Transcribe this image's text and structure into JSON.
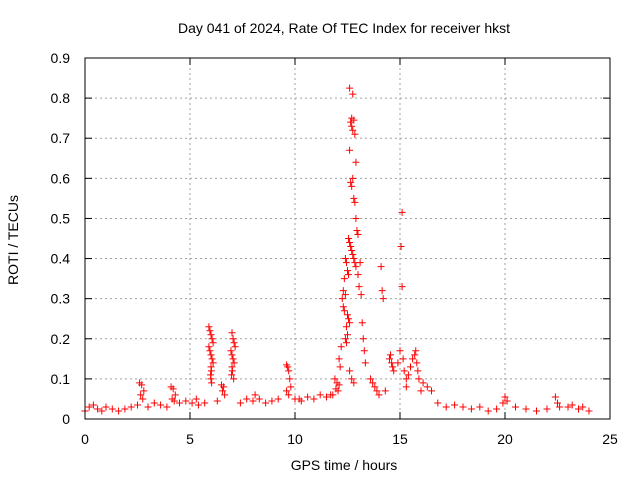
{
  "chart_data": {
    "type": "scatter",
    "title": "Day 041 of 2024, Rate Of TEC Index for receiver hkst",
    "xlabel": "GPS time / hours",
    "ylabel": "ROTI / TECUs",
    "xlim": [
      0,
      25
    ],
    "ylim": [
      0,
      0.9
    ],
    "xticks": [
      "0",
      "5",
      "10",
      "15",
      "20",
      "25"
    ],
    "yticks": [
      "0",
      "0.1",
      "0.2",
      "0.3",
      "0.4",
      "0.5",
      "0.6",
      "0.7",
      "0.8",
      "0.9"
    ],
    "grid": true,
    "marker": "+",
    "color": "#ff0000",
    "series": [
      {
        "x": [
          12.6,
          12.75,
          12.7,
          12.65,
          12.8,
          12.7,
          12.75,
          12.85,
          12.9,
          12.6,
          12.65,
          12.7,
          12.75,
          12.8,
          12.85,
          12.9,
          12.95,
          13.0,
          12.55,
          12.6,
          12.65,
          12.7,
          12.75,
          12.8,
          12.85,
          12.9,
          12.4,
          12.45,
          12.5,
          12.55,
          12.35,
          12.3,
          12.4,
          12.25,
          12.3,
          12.35,
          12.5,
          12.55,
          12.6,
          12.45,
          12.5,
          12.4,
          12.45,
          12.2,
          12.1,
          12.15,
          12.6,
          12.7,
          12.8,
          13.0,
          13.1,
          13.05,
          13.15,
          13.2,
          13.25,
          13.3,
          13.35,
          14.1,
          14.15,
          14.2,
          14.5,
          14.55,
          14.6,
          14.65,
          14.7,
          14.9,
          15.0,
          15.05,
          15.1,
          15.1,
          15.15,
          15.2,
          15.3,
          15.4,
          15.5,
          15.6,
          15.7,
          15.75,
          15.8,
          15.85,
          15.9,
          16.1,
          16.3,
          16.5,
          5.9,
          5.95,
          6.0,
          6.05,
          6.1,
          5.9,
          5.95,
          6.0,
          6.05,
          6.1,
          6.0,
          6.02,
          5.98,
          6.0,
          6.03,
          7.0,
          7.05,
          7.1,
          7.15,
          6.95,
          7.0,
          7.05,
          7.1,
          7.0,
          7.02,
          6.98,
          7.08,
          9.6,
          9.65,
          9.7,
          9.75,
          9.8,
          9.6,
          9.7,
          2.6,
          2.7,
          2.8,
          2.65,
          2.75,
          4.1,
          4.2,
          4.3,
          4.15,
          4.25,
          6.5,
          6.6,
          6.55,
          6.65,
          11.9,
          12.0,
          12.1,
          11.95,
          12.05,
          13.6,
          13.7,
          13.8,
          13.9,
          14.0,
          16.8,
          17.2,
          17.6,
          18.0,
          18.4,
          18.8,
          19.2,
          19.6,
          19.9,
          20.0,
          20.1,
          20.5,
          21.0,
          21.5,
          22.0,
          22.4,
          22.5,
          22.6,
          23.0,
          23.2,
          23.5,
          23.7,
          24.0,
          0.0,
          0.2,
          0.4,
          0.6,
          0.8,
          1.0,
          1.3,
          1.6,
          1.9,
          2.2,
          2.5,
          3.0,
          3.3,
          3.6,
          3.9,
          4.5,
          4.8,
          5.1,
          5.4,
          5.7,
          6.3,
          7.4,
          7.7,
          8.0,
          8.3,
          8.6,
          8.9,
          9.2,
          10.0,
          10.3,
          10.6,
          10.9,
          11.2,
          11.5,
          11.7,
          5.3,
          8.1,
          10.2,
          11.8,
          14.3,
          15.3,
          16.0
        ],
        "y": [
          0.825,
          0.81,
          0.75,
          0.74,
          0.745,
          0.73,
          0.72,
          0.71,
          0.64,
          0.67,
          0.59,
          0.58,
          0.6,
          0.55,
          0.54,
          0.5,
          0.47,
          0.46,
          0.45,
          0.44,
          0.43,
          0.42,
          0.41,
          0.4,
          0.39,
          0.38,
          0.4,
          0.39,
          0.37,
          0.36,
          0.35,
          0.32,
          0.31,
          0.3,
          0.28,
          0.27,
          0.26,
          0.25,
          0.24,
          0.23,
          0.21,
          0.2,
          0.19,
          0.18,
          0.15,
          0.13,
          0.12,
          0.1,
          0.09,
          0.36,
          0.39,
          0.33,
          0.31,
          0.24,
          0.2,
          0.17,
          0.14,
          0.38,
          0.32,
          0.3,
          0.15,
          0.16,
          0.14,
          0.13,
          0.12,
          0.14,
          0.17,
          0.43,
          0.33,
          0.515,
          0.15,
          0.12,
          0.1,
          0.11,
          0.13,
          0.15,
          0.16,
          0.17,
          0.14,
          0.12,
          0.1,
          0.09,
          0.08,
          0.07,
          0.23,
          0.22,
          0.21,
          0.2,
          0.19,
          0.18,
          0.17,
          0.16,
          0.15,
          0.14,
          0.13,
          0.12,
          0.11,
          0.1,
          0.09,
          0.215,
          0.2,
          0.19,
          0.18,
          0.17,
          0.16,
          0.15,
          0.14,
          0.13,
          0.12,
          0.11,
          0.1,
          0.135,
          0.13,
          0.12,
          0.1,
          0.08,
          0.07,
          0.06,
          0.09,
          0.085,
          0.07,
          0.06,
          0.05,
          0.08,
          0.075,
          0.06,
          0.05,
          0.045,
          0.085,
          0.08,
          0.07,
          0.06,
          0.1,
          0.09,
          0.085,
          0.075,
          0.07,
          0.1,
          0.09,
          0.08,
          0.07,
          0.06,
          0.04,
          0.03,
          0.035,
          0.03,
          0.025,
          0.03,
          0.02,
          0.025,
          0.04,
          0.055,
          0.045,
          0.03,
          0.025,
          0.02,
          0.025,
          0.055,
          0.04,
          0.03,
          0.03,
          0.035,
          0.025,
          0.03,
          0.02,
          0.02,
          0.03,
          0.035,
          0.025,
          0.02,
          0.03,
          0.025,
          0.02,
          0.025,
          0.03,
          0.035,
          0.03,
          0.04,
          0.035,
          0.03,
          0.04,
          0.045,
          0.04,
          0.035,
          0.04,
          0.045,
          0.04,
          0.05,
          0.045,
          0.05,
          0.04,
          0.045,
          0.05,
          0.05,
          0.045,
          0.055,
          0.05,
          0.06,
          0.055,
          0.06,
          0.05,
          0.06,
          0.05,
          0.06,
          0.07,
          0.08,
          0.07
        ]
      }
    ]
  }
}
